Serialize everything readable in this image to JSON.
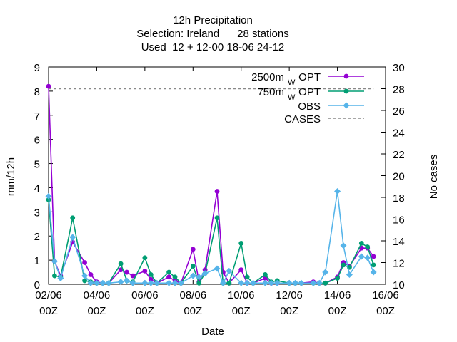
{
  "chart_data": {
    "type": "line",
    "title_lines": [
      "12h Precipitation",
      "Selection: Ireland      28 stations",
      "Used  12 + 12-00 18-06 24-12"
    ],
    "xlabel": "Date",
    "ylabel": "mm/12h",
    "y2label": "No cases",
    "xlim": [
      0,
      14
    ],
    "ylim": [
      0,
      9
    ],
    "y2lim": [
      10,
      30
    ],
    "x_ticks": [
      {
        "x": 0,
        "top": "02/06",
        "bottom": "00Z"
      },
      {
        "x": 2,
        "top": "04/06",
        "bottom": "00Z"
      },
      {
        "x": 4,
        "top": "06/06",
        "bottom": "00Z"
      },
      {
        "x": 6,
        "top": "08/06",
        "bottom": "00Z"
      },
      {
        "x": 8,
        "top": "10/06",
        "bottom": "00Z"
      },
      {
        "x": 10,
        "top": "12/06",
        "bottom": "00Z"
      },
      {
        "x": 12,
        "top": "14/06",
        "bottom": "00Z"
      },
      {
        "x": 14,
        "top": "16/06",
        "bottom": "00Z"
      }
    ],
    "y_ticks": [
      0,
      1,
      2,
      3,
      4,
      5,
      6,
      7,
      8,
      9
    ],
    "y2_ticks": [
      10,
      12,
      14,
      16,
      18,
      20,
      22,
      24,
      26,
      28,
      30
    ],
    "legend_position": "top-right",
    "series": [
      {
        "name": "2500m",
        "name_sub": "W",
        "name_suffix": "OPT",
        "color": "#9400d3",
        "marker": "circle",
        "axis": "left",
        "x": [
          0,
          0.25,
          0.5,
          1.0,
          1.5,
          1.75,
          2.0,
          2.25,
          2.5,
          3.0,
          3.25,
          3.5,
          4.0,
          4.25,
          4.5,
          5.0,
          5.25,
          5.5,
          6.0,
          6.25,
          6.5,
          7.0,
          7.25,
          7.5,
          8.0,
          8.25,
          8.5,
          9.0,
          9.25,
          9.5,
          10.0,
          10.25,
          10.5,
          11.0,
          11.25,
          11.5,
          12.0,
          12.25,
          12.5,
          13.0,
          13.25,
          13.5
        ],
        "y": [
          8.2,
          0.95,
          0.35,
          1.75,
          0.9,
          0.4,
          0.1,
          0.05,
          0.05,
          0.6,
          0.5,
          0.35,
          0.55,
          0.2,
          0.05,
          0.3,
          0.15,
          0.05,
          1.45,
          0.1,
          0.6,
          3.85,
          0.5,
          0.05,
          0.6,
          0.05,
          0.05,
          0.25,
          0.05,
          0.05,
          0.05,
          0.05,
          0.05,
          0.1,
          0.05,
          0.05,
          0.3,
          0.9,
          0.75,
          1.5,
          1.5,
          1.15
        ]
      },
      {
        "name": "750m",
        "name_sub": "W",
        "name_suffix": "OPT",
        "color": "#009e73",
        "marker": "circle",
        "axis": "left",
        "x": [
          0,
          0.25,
          0.5,
          1.0,
          1.5,
          1.75,
          2.0,
          2.25,
          2.5,
          3.0,
          3.25,
          3.5,
          4.0,
          4.25,
          4.5,
          5.0,
          5.25,
          5.5,
          6.0,
          6.25,
          6.5,
          7.0,
          7.25,
          7.5,
          8.0,
          8.25,
          8.5,
          9.0,
          9.25,
          9.5,
          10.0,
          10.25,
          10.5,
          11.0,
          11.25,
          11.5,
          12.0,
          12.25,
          12.5,
          13.0,
          13.25,
          13.5
        ],
        "y": [
          3.5,
          0.35,
          0.3,
          2.75,
          0.15,
          0.1,
          0.05,
          0.05,
          0.05,
          0.85,
          0.15,
          0.1,
          1.1,
          0.4,
          0.05,
          0.5,
          0.3,
          0.05,
          0.75,
          0.05,
          0.45,
          2.75,
          0.05,
          0.05,
          1.7,
          0.3,
          0.05,
          0.4,
          0.1,
          0.15,
          0.05,
          0.05,
          0.05,
          0.05,
          0.05,
          0.05,
          0.25,
          0.8,
          0.7,
          1.7,
          1.55,
          0.8
        ]
      },
      {
        "name": "OBS",
        "color": "#56b4e9",
        "marker": "diamond",
        "axis": "left",
        "x": [
          0,
          0.25,
          0.5,
          1.0,
          1.5,
          1.75,
          2.0,
          2.25,
          2.5,
          3.0,
          3.25,
          3.5,
          4.0,
          4.25,
          4.5,
          5.0,
          5.25,
          5.5,
          6.0,
          6.25,
          6.5,
          7.0,
          7.25,
          7.5,
          8.0,
          8.25,
          8.5,
          9.0,
          9.25,
          9.5,
          10.0,
          10.25,
          10.5,
          11.0,
          11.25,
          11.5,
          12.0,
          12.25,
          12.5,
          13.0,
          13.25,
          13.5
        ],
        "y": [
          3.65,
          0.95,
          0.25,
          1.95,
          0.35,
          0.05,
          0.05,
          0.05,
          0.05,
          0.1,
          0.15,
          0.05,
          0.05,
          0.05,
          0.05,
          0.05,
          0.05,
          0.05,
          0.35,
          0.3,
          0.45,
          0.65,
          0.05,
          0.55,
          0.05,
          0.05,
          0.05,
          0.05,
          0.05,
          0.05,
          0.05,
          0.05,
          0.05,
          0.05,
          0.05,
          0.5,
          3.85,
          1.6,
          0.4,
          1.15,
          1.1,
          0.5
        ]
      },
      {
        "name": "CASES",
        "color": "#888888",
        "line_style": "dashed",
        "axis": "right",
        "x": [
          0,
          0.25,
          0.5,
          1.0,
          1.5,
          1.75,
          2.0,
          2.25,
          2.5,
          3.0,
          3.25,
          3.5,
          4.0,
          4.25,
          4.5,
          5.0,
          5.25,
          5.5,
          6.0,
          6.25,
          6.5,
          7.0,
          7.25,
          7.5,
          8.0,
          8.25,
          8.5,
          9.0,
          9.25,
          9.5,
          10.0,
          10.25,
          10.5,
          11.0,
          11.25,
          11.5,
          12.0,
          12.25,
          12.5,
          13.0,
          13.25,
          13.5
        ],
        "y": [
          28,
          28,
          28,
          28,
          28,
          28,
          28,
          28,
          28,
          28,
          28,
          28,
          28,
          28,
          28,
          28,
          28,
          28,
          28,
          28,
          28,
          28,
          28,
          28,
          28,
          28,
          28,
          28,
          28,
          28,
          28,
          28,
          28,
          28,
          28,
          28,
          28,
          28,
          28,
          28,
          28,
          28
        ]
      }
    ]
  }
}
